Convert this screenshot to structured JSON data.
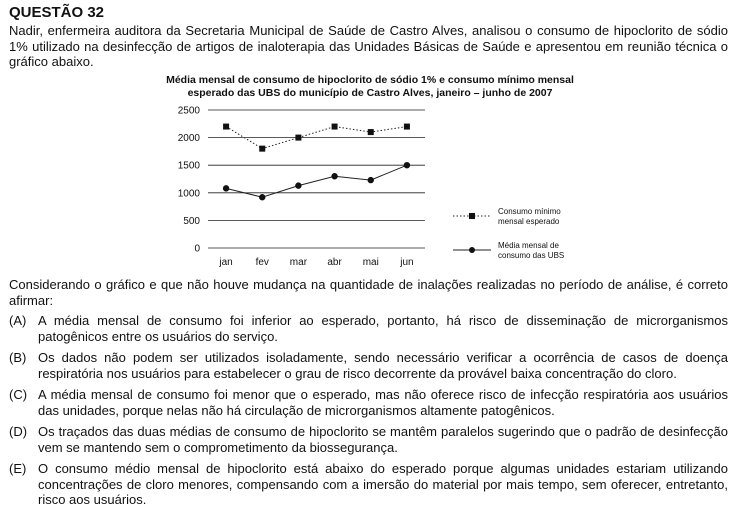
{
  "question": {
    "title": "QUESTÃO 32",
    "intro": "Nadir, enfermeira auditora da Secretaria Municipal de Saúde de Castro Alves, analisou o consumo de hipoclorito de sódio 1% utilizado na desinfecção de artigos de inaloterapia das Unidades Básicas de Saúde e apresentou em reunião técnica o gráfico abaixo.",
    "prompt": "Considerando o gráfico e que não houve mudança na quantidade de inalações realizadas no período de análise, é correto afirmar:",
    "options": [
      {
        "letter": "(A)",
        "text": "A média mensal de consumo foi inferior ao esperado, portanto, há risco de disseminação de microrganismos patogênicos entre os usuários do serviço."
      },
      {
        "letter": "(B)",
        "text": "Os dados não podem ser utilizados isoladamente, sendo necessário verificar a ocorrência de casos de doença respiratória nos usuários para estabelecer o grau de risco decorrente da provável baixa concentração do cloro."
      },
      {
        "letter": "(C)",
        "text": "A média mensal de consumo foi menor que o esperado, mas não oferece risco de infecção respiratória aos usuários das unidades, porque nelas não há circulação de microrganismos altamente patogênicos."
      },
      {
        "letter": "(D)",
        "text": "Os traçados das duas médias de consumo de hipoclorito se mantêm paralelos sugerindo que o padrão de desinfecção vem se mantendo sem o comprometimento da biossegurança."
      },
      {
        "letter": "(E)",
        "text": "O consumo médio mensal de hipoclorito está abaixo do esperado porque algumas unidades estariam utilizando concentrações de cloro menores, compensando com a imersão do material por mais tempo, sem oferecer, entretanto, risco aos usuários."
      }
    ]
  },
  "chart_data": {
    "type": "line",
    "title_line1": "Média mensal de consumo de hipoclorito de sódio 1% e consumo mínimo mensal",
    "title_line2": "esperado das UBS do município de Castro Alves, janeiro – junho de 2007",
    "categories": [
      "jan",
      "fev",
      "mar",
      "abr",
      "mai",
      "jun"
    ],
    "ylim": [
      0,
      2500
    ],
    "yticks": [
      "0",
      "500",
      "1000",
      "1500",
      "2000",
      "2500"
    ],
    "grid": true,
    "legend_position": "right",
    "series": [
      {
        "name_line1": "Consumo mínimo",
        "name_line2": "mensal esperado",
        "style": "dotted",
        "marker": "square",
        "values": [
          2200,
          1800,
          2000,
          2200,
          2100,
          2200
        ]
      },
      {
        "name_line1": "Média mensal de",
        "name_line2": "consumo das UBS",
        "style": "solid",
        "marker": "circle",
        "values": [
          1080,
          920,
          1130,
          1300,
          1230,
          1500
        ]
      }
    ]
  }
}
